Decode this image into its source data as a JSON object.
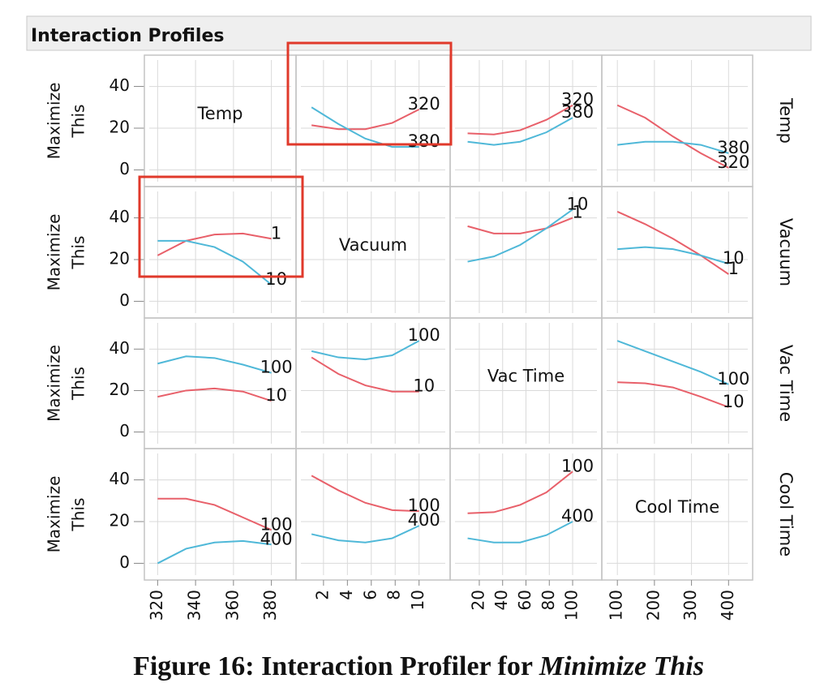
{
  "header": {
    "title": "Interaction Profiles"
  },
  "chart_data": {
    "type": "line",
    "y_label": [
      "Maximize",
      "This"
    ],
    "ylim": [
      -8,
      55
    ],
    "yticks": [
      0,
      20,
      40
    ],
    "grid": true,
    "factors": [
      {
        "name": "Temp",
        "xlim": [
          313,
          393
        ],
        "xticks": [
          320,
          340,
          360,
          380
        ],
        "x": [
          320,
          335,
          350,
          365,
          380
        ],
        "levels": [
          {
            "name": "320",
            "color": "#e8606a"
          },
          {
            "name": "380",
            "color": "#4fb8d8"
          }
        ]
      },
      {
        "name": "Vacuum",
        "xlim": [
          -0.3,
          12.6
        ],
        "xticks": [
          2,
          4,
          6,
          8,
          10
        ],
        "x": [
          1,
          3.25,
          5.5,
          7.75,
          10
        ],
        "levels": [
          {
            "name": "1",
            "color": "#e8606a"
          },
          {
            "name": "10",
            "color": "#4fb8d8"
          }
        ]
      },
      {
        "name": "Vac Time",
        "xlim": [
          -5,
          125
        ],
        "xticks": [
          20,
          40,
          60,
          80,
          100
        ],
        "x": [
          10,
          32.5,
          55,
          77.5,
          100
        ],
        "levels": [
          {
            "name": "10",
            "color": "#e8606a"
          },
          {
            "name": "100",
            "color": "#4fb8d8"
          }
        ]
      },
      {
        "name": "Cool Time",
        "xlim": [
          58,
          465
        ],
        "xticks": [
          100,
          200,
          300,
          400
        ],
        "x": [
          100,
          175,
          250,
          325,
          400
        ],
        "levels": [
          {
            "name": "100",
            "color": "#e8606a"
          },
          {
            "name": "400",
            "color": "#4fb8d8"
          }
        ]
      }
    ],
    "panels": [
      [
        null,
        {
          "values": [
            [
              21.4,
              19.5,
              19.5,
              22.5,
              29
            ],
            [
              30,
              22,
              15,
              11,
              11
            ]
          ]
        },
        {
          "values": [
            [
              17.5,
              17,
              19,
              24,
              31
            ],
            [
              13.5,
              12,
              13.5,
              18,
              25
            ]
          ]
        },
        {
          "values": [
            [
              31,
              25,
              16,
              8,
              1
            ],
            [
              12,
              13.5,
              13.5,
              12,
              8
            ]
          ]
        }
      ],
      [
        {
          "values": [
            [
              22,
              29,
              32,
              32.5,
              30
            ],
            [
              29,
              29,
              26,
              19,
              8
            ]
          ]
        },
        null,
        {
          "values": [
            [
              36,
              32.5,
              32.5,
              35,
              40
            ],
            [
              19,
              21.5,
              27,
              35,
              44
            ]
          ]
        },
        {
          "values": [
            [
              43,
              37,
              30,
              22,
              13
            ],
            [
              25,
              26,
              25,
              22,
              18
            ]
          ]
        }
      ],
      [
        {
          "values": [
            [
              17,
              20,
              21,
              19.5,
              15
            ],
            [
              33,
              36.5,
              35.7,
              32.5,
              28.5
            ]
          ]
        },
        {
          "values": [
            [
              36,
              28,
              22.5,
              19.5,
              19.5
            ],
            [
              39,
              36,
              35,
              37,
              44
            ]
          ]
        },
        null,
        {
          "values": [
            [
              24,
              23.5,
              21.5,
              17,
              12
            ],
            [
              44,
              39,
              34,
              29,
              23
            ]
          ]
        }
      ],
      [
        {
          "values": [
            [
              31,
              31,
              28,
              22,
              16
            ],
            [
              0,
              7,
              10,
              10.7,
              9
            ]
          ]
        },
        {
          "values": [
            [
              42,
              35,
              29,
              25.5,
              25
            ],
            [
              14,
              11,
              10,
              12,
              18
            ]
          ]
        },
        {
          "values": [
            [
              24,
              24.5,
              28,
              34,
              44
            ],
            [
              12,
              10,
              10,
              13.5,
              20
            ]
          ]
        },
        null
      ]
    ]
  },
  "caption": {
    "text": "Figure 16: Interaction Profiler for ",
    "emphasis": "Minimize This"
  }
}
